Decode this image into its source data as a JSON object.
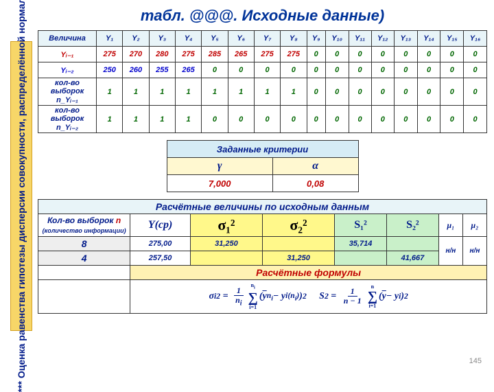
{
  "sidebar_text": "*** Оценка равенства гипотезы дисперсии совокупности, распределённой нормально",
  "title": "табл. @@@. Исходные данные)",
  "page_number": "145",
  "data_table": {
    "head": [
      "Величина",
      "Y₁",
      "Y₂",
      "Y₃",
      "Y₄",
      "Y₅",
      "Y₆",
      "Y₇",
      "Y₈",
      "Y₉",
      "Y₁₀",
      "Y₁₁",
      "Y₁₂",
      "Y₁₃",
      "Y₁₄",
      "Y₁₅",
      "Y₁₆"
    ],
    "rows": [
      {
        "label": "Yᵢ₋₁",
        "cls": "red",
        "vals": [
          "275",
          "270",
          "280",
          "275",
          "285",
          "265",
          "275",
          "275",
          "0",
          "0",
          "0",
          "0",
          "0",
          "0",
          "0",
          "0"
        ],
        "vcls": "val-red",
        "zcls": "val-green"
      },
      {
        "label": "Yᵢ₋₂",
        "cls": "blue",
        "vals": [
          "250",
          "260",
          "255",
          "265",
          "0",
          "0",
          "0",
          "0",
          "0",
          "0",
          "0",
          "0",
          "0",
          "0",
          "0",
          "0"
        ],
        "vcls": "val-blue",
        "zcls": "val-green"
      },
      {
        "label": "кол-во выборок n_Yᵢ₋₁",
        "cls": "",
        "vals": [
          "1",
          "1",
          "1",
          "1",
          "1",
          "1",
          "1",
          "1",
          "0",
          "0",
          "0",
          "0",
          "0",
          "0",
          "0",
          "0"
        ],
        "vcls": "val-green",
        "zcls": "val-green"
      },
      {
        "label": "кол-во выборок n_Yᵢ₋₂",
        "cls": "",
        "vals": [
          "1",
          "1",
          "1",
          "1",
          "0",
          "0",
          "0",
          "0",
          "0",
          "0",
          "0",
          "0",
          "0",
          "0",
          "0",
          "0"
        ],
        "vcls": "val-green",
        "zcls": "val-green"
      }
    ]
  },
  "criteria": {
    "title": "Заданные критерии",
    "gamma_sym": "γ",
    "alpha_sym": "α",
    "gamma_val": "7,000",
    "alpha_val": "0,08"
  },
  "calc": {
    "title": "Расчётные величины по исходным данным",
    "h_n": "Кол-во выборок",
    "h_n_red": "n",
    "h_n_sub": "(количество информации)",
    "h_y": "Y(ср)",
    "h_sigma1": "σ₁²",
    "h_sigma2": "σ₂²",
    "h_s1": "S₁²",
    "h_s2": "S₂²",
    "h_mu1": "μ₁",
    "h_mu2": "μ₂",
    "row1": {
      "n": "8",
      "y": "275,00",
      "sigma1": "31,250",
      "sigma2": "",
      "s1": "35,714",
      "s2": ""
    },
    "row2": {
      "n": "4",
      "y": "257,50",
      "sigma1": "",
      "sigma2": "31,250",
      "s1": "",
      "s2": "41,667"
    },
    "nn": "н/н",
    "formulas_title": "Расчётные формулы"
  }
}
